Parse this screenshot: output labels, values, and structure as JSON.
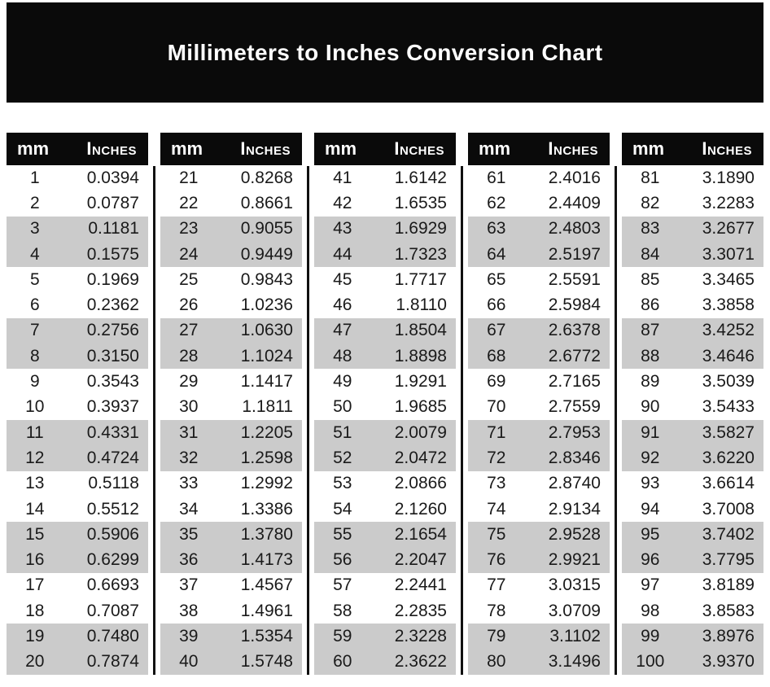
{
  "title": "Millimeters to Inches Conversion Chart",
  "colors": {
    "page_bg": "#ffffff",
    "banner_bg": "#0a0a0a",
    "banner_text": "#ffffff",
    "header_bg": "#0a0a0a",
    "header_text": "#ffffff",
    "stripe_bg": "#cbcbcb",
    "divider": "#111111",
    "row_text": "#1a1a1a"
  },
  "chart_data": {
    "type": "table",
    "title": "Millimeters to Inches Conversion Chart",
    "columns": [
      "mm",
      "Inches"
    ],
    "layout": "5 side-by-side column groups of 20 rows; rows shaded gray in alternating pairs",
    "groups": [
      {
        "mm_range": "1-20",
        "rows": [
          [
            1,
            "0.0394"
          ],
          [
            2,
            "0.0787"
          ],
          [
            3,
            "0.1181"
          ],
          [
            4,
            "0.1575"
          ],
          [
            5,
            "0.1969"
          ],
          [
            6,
            "0.2362"
          ],
          [
            7,
            "0.2756"
          ],
          [
            8,
            "0.3150"
          ],
          [
            9,
            "0.3543"
          ],
          [
            10,
            "0.3937"
          ],
          [
            11,
            "0.4331"
          ],
          [
            12,
            "0.4724"
          ],
          [
            13,
            "0.5118"
          ],
          [
            14,
            "0.5512"
          ],
          [
            15,
            "0.5906"
          ],
          [
            16,
            "0.6299"
          ],
          [
            17,
            "0.6693"
          ],
          [
            18,
            "0.7087"
          ],
          [
            19,
            "0.7480"
          ],
          [
            20,
            "0.7874"
          ]
        ]
      },
      {
        "mm_range": "21-40",
        "rows": [
          [
            21,
            "0.8268"
          ],
          [
            22,
            "0.8661"
          ],
          [
            23,
            "0.9055"
          ],
          [
            24,
            "0.9449"
          ],
          [
            25,
            "0.9843"
          ],
          [
            26,
            "1.0236"
          ],
          [
            27,
            "1.0630"
          ],
          [
            28,
            "1.1024"
          ],
          [
            29,
            "1.1417"
          ],
          [
            30,
            "1.1811"
          ],
          [
            31,
            "1.2205"
          ],
          [
            32,
            "1.2598"
          ],
          [
            33,
            "1.2992"
          ],
          [
            34,
            "1.3386"
          ],
          [
            35,
            "1.3780"
          ],
          [
            36,
            "1.4173"
          ],
          [
            37,
            "1.4567"
          ],
          [
            38,
            "1.4961"
          ],
          [
            39,
            "1.5354"
          ],
          [
            40,
            "1.5748"
          ]
        ]
      },
      {
        "mm_range": "41-60",
        "rows": [
          [
            41,
            "1.6142"
          ],
          [
            42,
            "1.6535"
          ],
          [
            43,
            "1.6929"
          ],
          [
            44,
            "1.7323"
          ],
          [
            45,
            "1.7717"
          ],
          [
            46,
            "1.8110"
          ],
          [
            47,
            "1.8504"
          ],
          [
            48,
            "1.8898"
          ],
          [
            49,
            "1.9291"
          ],
          [
            50,
            "1.9685"
          ],
          [
            51,
            "2.0079"
          ],
          [
            52,
            "2.0472"
          ],
          [
            53,
            "2.0866"
          ],
          [
            54,
            "2.1260"
          ],
          [
            55,
            "2.1654"
          ],
          [
            56,
            "2.2047"
          ],
          [
            57,
            "2.2441"
          ],
          [
            58,
            "2.2835"
          ],
          [
            59,
            "2.3228"
          ],
          [
            60,
            "2.3622"
          ]
        ]
      },
      {
        "mm_range": "61-80",
        "rows": [
          [
            61,
            "2.4016"
          ],
          [
            62,
            "2.4409"
          ],
          [
            63,
            "2.4803"
          ],
          [
            64,
            "2.5197"
          ],
          [
            65,
            "2.5591"
          ],
          [
            66,
            "2.5984"
          ],
          [
            67,
            "2.6378"
          ],
          [
            68,
            "2.6772"
          ],
          [
            69,
            "2.7165"
          ],
          [
            70,
            "2.7559"
          ],
          [
            71,
            "2.7953"
          ],
          [
            72,
            "2.8346"
          ],
          [
            73,
            "2.8740"
          ],
          [
            74,
            "2.9134"
          ],
          [
            75,
            "2.9528"
          ],
          [
            76,
            "2.9921"
          ],
          [
            77,
            "3.0315"
          ],
          [
            78,
            "3.0709"
          ],
          [
            79,
            "3.1102"
          ],
          [
            80,
            "3.1496"
          ]
        ]
      },
      {
        "mm_range": "81-100",
        "rows": [
          [
            81,
            "3.1890"
          ],
          [
            82,
            "3.2283"
          ],
          [
            83,
            "3.2677"
          ],
          [
            84,
            "3.3071"
          ],
          [
            85,
            "3.3465"
          ],
          [
            86,
            "3.3858"
          ],
          [
            87,
            "3.4252"
          ],
          [
            88,
            "3.4646"
          ],
          [
            89,
            "3.5039"
          ],
          [
            90,
            "3.5433"
          ],
          [
            91,
            "3.5827"
          ],
          [
            92,
            "3.6220"
          ],
          [
            93,
            "3.6614"
          ],
          [
            94,
            "3.7008"
          ],
          [
            95,
            "3.7402"
          ],
          [
            96,
            "3.7795"
          ],
          [
            97,
            "3.8189"
          ],
          [
            98,
            "3.8583"
          ],
          [
            99,
            "3.8976"
          ],
          [
            100,
            "3.9370"
          ]
        ]
      }
    ]
  }
}
